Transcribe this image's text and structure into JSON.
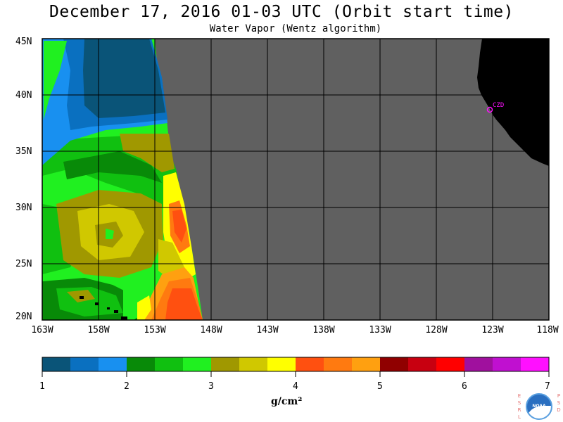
{
  "title": "December 17, 2016  01-03 UTC  (Orbit start time)",
  "subtitle": "Water Vapor (Wentz algorithm)",
  "latitude_labels": [
    "45N",
    "40N",
    "35N",
    "30N",
    "25N",
    "20N"
  ],
  "longitude_labels": [
    "163W",
    "158W",
    "153W",
    "148W",
    "143W",
    "138W",
    "133W",
    "128W",
    "123W",
    "118W"
  ],
  "station_label": "CZD",
  "colorbar": {
    "tick_labels": [
      "1",
      "2",
      "3",
      "4",
      "5",
      "6",
      "7"
    ],
    "units_label": "g/cm²",
    "colors": [
      "#0a5478",
      "#0a70c0",
      "#1890f0",
      "#088a08",
      "#10c010",
      "#20f020",
      "#a09800",
      "#d0c800",
      "#ffff00",
      "#ff5010",
      "#ff7a10",
      "#ffa010",
      "#900000",
      "#c80010",
      "#ff0000",
      "#a0109e",
      "#c010d0",
      "#ff10ff"
    ]
  },
  "map_colors": {
    "no_data": "#606060",
    "land": "#000000",
    "station": "#ff10ff"
  },
  "logo": {
    "left_letters": [
      "E",
      "S",
      "R",
      "L"
    ],
    "right_letters": [
      "P",
      "S",
      "D"
    ],
    "emblem_text": "NOAA"
  }
}
